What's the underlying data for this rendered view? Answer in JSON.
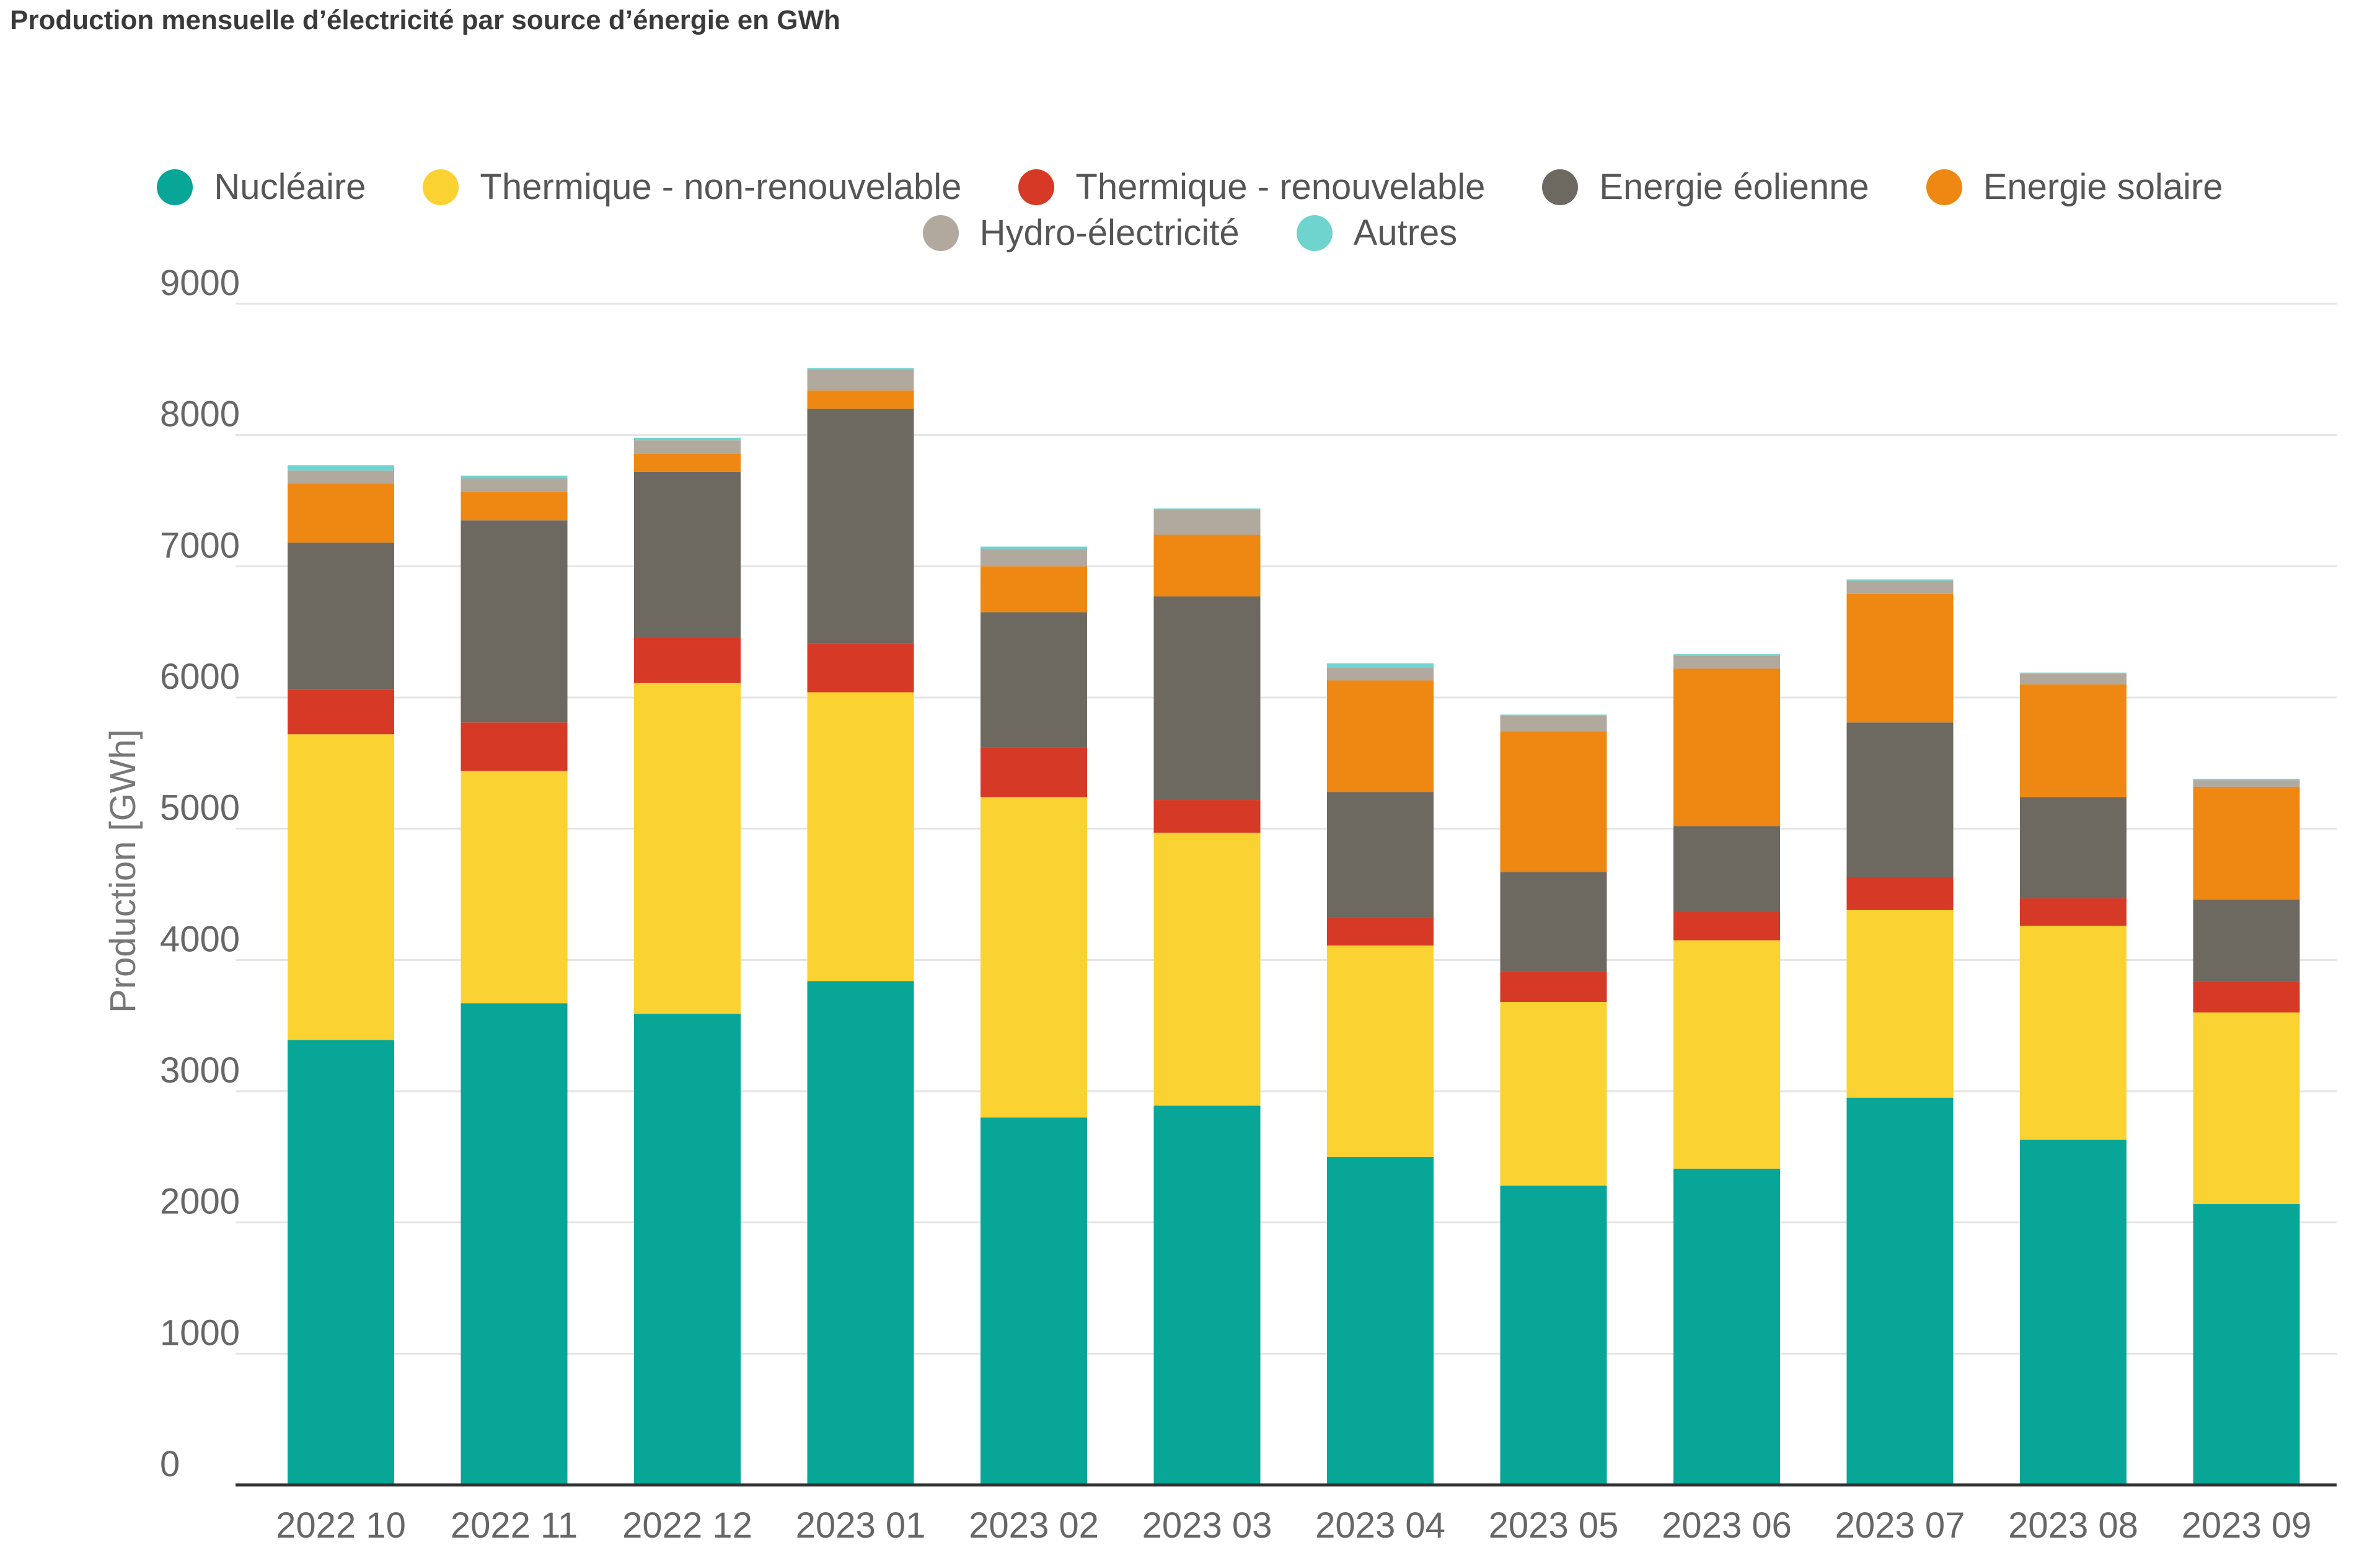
{
  "title": "Production mensuelle d’électricité par source d’énergie en GWh",
  "legend_row1": [
    {
      "label": "Nucléaire",
      "color": "#08A697"
    },
    {
      "label": "Thermique - non-renouvelable",
      "color": "#FAD232"
    },
    {
      "label": "Thermique - renouvelable",
      "color": "#D63A26"
    },
    {
      "label": "Energie éolienne",
      "color": "#6E6960"
    },
    {
      "label": "Energie solaire",
      "color": "#EE8812"
    }
  ],
  "legend_row2": [
    {
      "label": "Hydro-électricité",
      "color": "#B1A89E"
    },
    {
      "label": "Autres",
      "color": "#6FD4CD"
    }
  ],
  "chart_data": {
    "type": "bar",
    "stacked": true,
    "title": "Production mensuelle d’électricité par source d’énergie en GWh",
    "xlabel": "",
    "ylabel": "Production [GWh]",
    "ylim": [
      0,
      9000
    ],
    "yticks": [
      0,
      1000,
      2000,
      3000,
      4000,
      5000,
      6000,
      7000,
      8000,
      9000
    ],
    "grid": true,
    "legend_position": "top",
    "categories": [
      "2022 10",
      "2022 11",
      "2022 12",
      "2023 01",
      "2023 02",
      "2023 03",
      "2023 04",
      "2023 05",
      "2023 06",
      "2023 07",
      "2023 08",
      "2023 09"
    ],
    "series": [
      {
        "name": "Nucléaire",
        "color": "#08A697",
        "values": [
          3390,
          3670,
          3590,
          3840,
          2800,
          2890,
          2500,
          2280,
          2410,
          2950,
          2630,
          2140
        ]
      },
      {
        "name": "Thermique - non-renouvelable",
        "color": "#FAD232",
        "values": [
          2330,
          1770,
          2520,
          2200,
          2440,
          2080,
          1610,
          1400,
          1740,
          1430,
          1630,
          1460
        ]
      },
      {
        "name": "Thermique - renouvelable",
        "color": "#D63A26",
        "values": [
          340,
          370,
          350,
          370,
          380,
          250,
          210,
          230,
          220,
          250,
          210,
          240
        ]
      },
      {
        "name": "Energie éolienne",
        "color": "#6E6960",
        "values": [
          1120,
          1540,
          1260,
          1790,
          1030,
          1550,
          960,
          760,
          650,
          1180,
          770,
          620
        ]
      },
      {
        "name": "Energie solaire",
        "color": "#EE8812",
        "values": [
          450,
          220,
          140,
          140,
          350,
          470,
          850,
          1070,
          1200,
          980,
          860,
          860
        ]
      },
      {
        "name": "Hydro-électricité",
        "color": "#B1A89E",
        "values": [
          100,
          100,
          100,
          160,
          130,
          190,
          100,
          120,
          100,
          100,
          80,
          50
        ]
      },
      {
        "name": "Autres",
        "color": "#6FD4CD",
        "values": [
          40,
          20,
          20,
          10,
          20,
          10,
          30,
          10,
          10,
          10,
          10,
          10
        ]
      }
    ]
  }
}
